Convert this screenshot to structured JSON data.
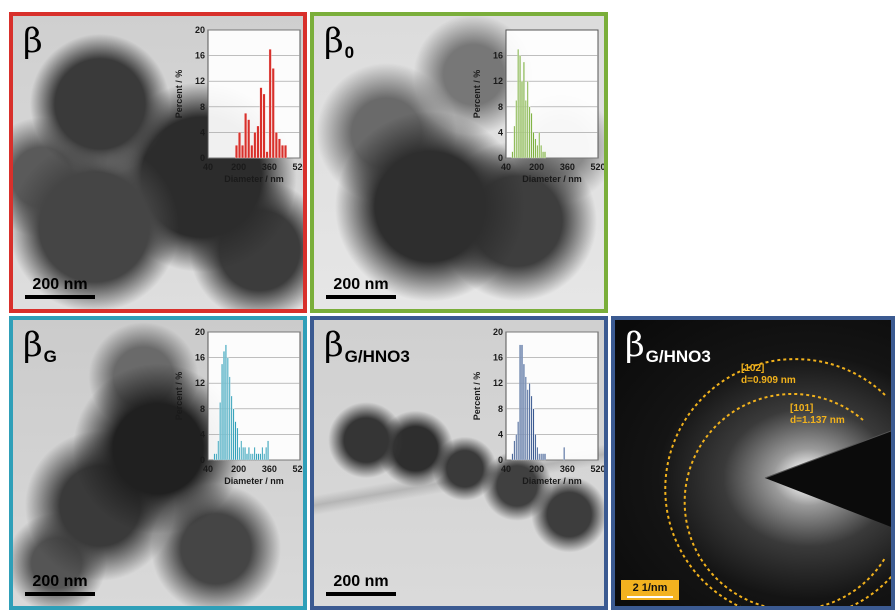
{
  "colors": {
    "red_frame": "#d8302b",
    "green_frame": "#7aae3a",
    "teal_frame": "#2f9fb8",
    "navy_frame": "#3b5a91",
    "sad_frame": "#3b5a91",
    "ring": "#f2b21c"
  },
  "panels": [
    {
      "id": "a",
      "label_main": "β",
      "label_sub": "",
      "scale_bar": "200 nm"
    },
    {
      "id": "b",
      "label_main": "β",
      "label_sub": "0",
      "scale_bar": "200 nm"
    },
    {
      "id": "c",
      "label_main": "β",
      "label_sub": "G",
      "scale_bar": "200 nm"
    },
    {
      "id": "d",
      "label_main": "β",
      "label_sub": "G/HNO3",
      "scale_bar": "200 nm"
    },
    {
      "id": "e",
      "label_main": "β",
      "label_sub": "G/HNO3",
      "scale_bar": "2 1/nm"
    }
  ],
  "sad": {
    "rings": [
      {
        "plane": "[102]",
        "d": "d=0.909 nm"
      },
      {
        "plane": "[101]",
        "d": "d=1.137 nm"
      }
    ]
  },
  "chart_data": [
    {
      "type": "bar",
      "panel": "β",
      "color": "#d8302b",
      "xlabel": "Diameter / nm",
      "ylabel": "Percent / %",
      "xlim": [
        40,
        520
      ],
      "ylim": [
        0,
        20
      ],
      "xticks": [
        40,
        200,
        360,
        520
      ],
      "yticks": [
        0,
        4,
        8,
        12,
        16,
        20
      ],
      "bin_width": 16,
      "x": [
        190,
        206,
        222,
        238,
        254,
        270,
        286,
        302,
        318,
        334,
        350,
        366,
        382,
        398,
        414,
        430,
        446
      ],
      "values": [
        2,
        4,
        2,
        7,
        6,
        2,
        4,
        5,
        11,
        10,
        1,
        17,
        14,
        4,
        3,
        2,
        2
      ]
    },
    {
      "type": "bar",
      "panel": "β0",
      "color": "#7aae3a",
      "xlabel": "Diameter / nm",
      "ylabel": "Percent / %",
      "xlim": [
        40,
        520
      ],
      "ylim": [
        0,
        20
      ],
      "xticks": [
        40,
        200,
        360,
        520
      ],
      "yticks": [
        0,
        4,
        8,
        12,
        16
      ],
      "bin_width": 10,
      "x": [
        75,
        85,
        95,
        105,
        115,
        125,
        135,
        145,
        155,
        165,
        175,
        185,
        195,
        205,
        215,
        225,
        235,
        245
      ],
      "values": [
        1,
        5,
        9,
        17,
        16,
        12,
        15,
        9,
        12,
        8,
        7,
        4,
        3,
        2,
        4,
        2,
        1,
        1
      ]
    },
    {
      "type": "bar",
      "panel": "βG",
      "color": "#2f9fb8",
      "xlabel": "Diameter / nm",
      "ylabel": "Percent / %",
      "xlim": [
        40,
        520
      ],
      "ylim": [
        0,
        20
      ],
      "xticks": [
        40,
        200,
        360,
        520
      ],
      "yticks": [
        0,
        4,
        8,
        12,
        16,
        20
      ],
      "bin_width": 10,
      "x": [
        75,
        85,
        95,
        105,
        115,
        125,
        135,
        145,
        155,
        165,
        175,
        185,
        195,
        205,
        215,
        225,
        235,
        245,
        255,
        265,
        275,
        285,
        295,
        305,
        315,
        325,
        335,
        345,
        355
      ],
      "values": [
        1,
        1,
        3,
        9,
        15,
        17,
        18,
        16,
        13,
        10,
        8,
        6,
        5,
        2,
        3,
        2,
        2,
        1,
        2,
        1,
        1,
        2,
        1,
        1,
        1,
        2,
        1,
        2,
        3
      ]
    },
    {
      "type": "bar",
      "panel": "βG/HNO3",
      "color": "#3b5a91",
      "xlabel": "Diameter / nm",
      "ylabel": "Percent / %",
      "xlim": [
        40,
        520
      ],
      "ylim": [
        0,
        20
      ],
      "xticks": [
        40,
        200,
        360,
        520
      ],
      "yticks": [
        0,
        4,
        8,
        12,
        16,
        20
      ],
      "bin_width": 10,
      "x": [
        75,
        85,
        95,
        105,
        115,
        125,
        135,
        145,
        155,
        165,
        175,
        185,
        195,
        205,
        215,
        225,
        235,
        245,
        345
      ],
      "values": [
        1,
        3,
        4,
        6,
        18,
        18,
        15,
        13,
        11,
        12,
        10,
        8,
        4,
        2,
        1,
        1,
        1,
        1,
        2
      ]
    }
  ]
}
